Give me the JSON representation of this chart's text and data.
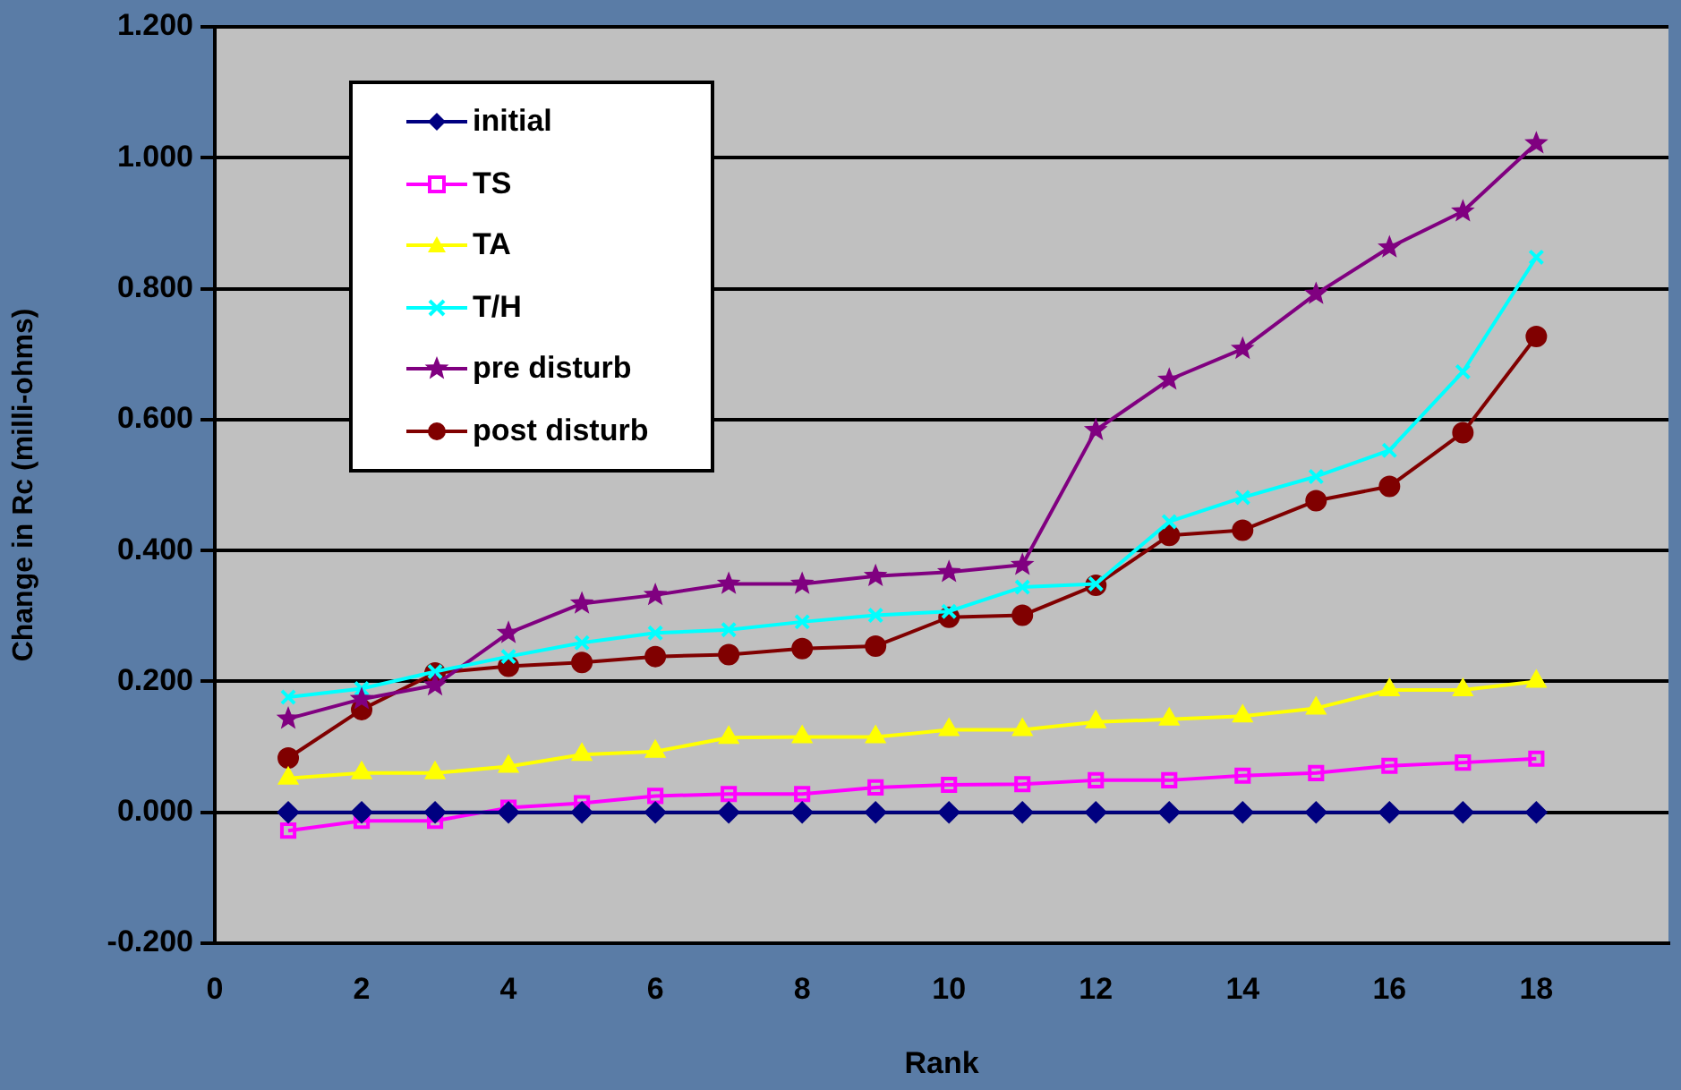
{
  "chart_data": {
    "type": "line",
    "xlabel": "Rank",
    "ylabel": "Change in Rc (milli-ohms)",
    "x": [
      1,
      2,
      3,
      4,
      5,
      6,
      7,
      8,
      9,
      10,
      11,
      12,
      13,
      14,
      15,
      16,
      17,
      18
    ],
    "xlim": [
      0,
      19.8
    ],
    "xticks": [
      0,
      2,
      4,
      6,
      8,
      10,
      12,
      14,
      16,
      18
    ],
    "ylim": [
      -0.2,
      1.2
    ],
    "yticks": [
      {
        "value": -0.2,
        "label": "-0.200"
      },
      {
        "value": 0,
        "label": "0.000"
      },
      {
        "value": 0.2,
        "label": "0.200"
      },
      {
        "value": 0.4,
        "label": "0.400"
      },
      {
        "value": 0.6,
        "label": "0.600"
      },
      {
        "value": 0.8,
        "label": "0.800"
      },
      {
        "value": 1.0,
        "label": "1.000"
      },
      {
        "value": 1.2,
        "label": "1.200"
      }
    ],
    "grid": "y",
    "legend": "top left",
    "line_style": "solid",
    "series": [
      {
        "name": "initial",
        "color": "#000080",
        "marker": "diamond",
        "values": [
          0,
          0,
          0,
          0,
          0,
          0,
          0,
          0,
          0,
          0,
          0,
          0,
          0,
          0,
          0,
          0,
          0,
          0
        ]
      },
      {
        "name": "TS",
        "color": "#ff00ff",
        "marker": "square",
        "values": [
          -0.028,
          -0.013,
          -0.013,
          0.007,
          0.014,
          0.025,
          0.028,
          0.028,
          0.038,
          0.042,
          0.043,
          0.049,
          0.049,
          0.056,
          0.06,
          0.071,
          0.076,
          0.082
        ]
      },
      {
        "name": "TA",
        "color": "#ffff00",
        "marker": "triangle",
        "values": [
          0.052,
          0.06,
          0.06,
          0.07,
          0.088,
          0.093,
          0.114,
          0.115,
          0.115,
          0.126,
          0.126,
          0.138,
          0.142,
          0.147,
          0.159,
          0.187,
          0.187,
          0.2
        ]
      },
      {
        "name": "T/H",
        "color": "#00ffff",
        "marker": "cross",
        "values": [
          0.176,
          0.189,
          0.215,
          0.238,
          0.259,
          0.274,
          0.279,
          0.291,
          0.301,
          0.307,
          0.344,
          0.349,
          0.444,
          0.481,
          0.513,
          0.553,
          0.673,
          0.848
        ]
      },
      {
        "name": "pre disturb",
        "color": "#800080",
        "marker": "star",
        "values": [
          0.143,
          0.173,
          0.194,
          0.274,
          0.319,
          0.332,
          0.349,
          0.349,
          0.361,
          0.367,
          0.378,
          0.584,
          0.661,
          0.708,
          0.792,
          0.863,
          0.918,
          1.022
        ]
      },
      {
        "name": "post disturb",
        "color": "#800000",
        "marker": "circle",
        "values": [
          0.083,
          0.157,
          0.213,
          0.223,
          0.229,
          0.238,
          0.241,
          0.25,
          0.254,
          0.298,
          0.301,
          0.347,
          0.423,
          0.431,
          0.476,
          0.498,
          0.58,
          0.727
        ]
      }
    ]
  }
}
